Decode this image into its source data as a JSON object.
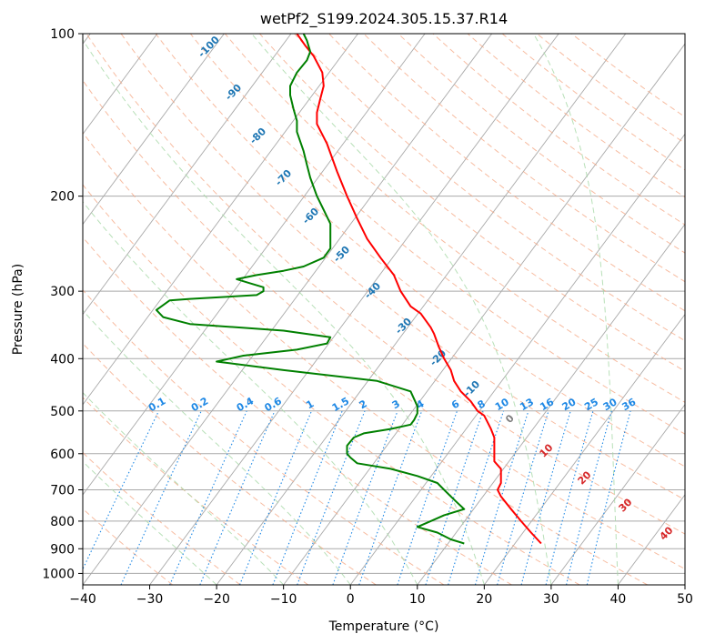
{
  "chart_data": {
    "type": "line",
    "title": "wetPf2_S199.2024.305.15.37.R14",
    "xlabel": "Temperature (°C)",
    "ylabel": "Pressure (hPa)",
    "xlim": [
      -40,
      50
    ],
    "ylim": [
      1050,
      100
    ],
    "y_scale": "log",
    "x_ticks": [
      -40,
      -30,
      -20,
      -10,
      0,
      10,
      20,
      30,
      40,
      50
    ],
    "y_ticks": [
      100,
      200,
      300,
      400,
      500,
      600,
      700,
      800,
      900,
      1000
    ],
    "grid": true,
    "colors": {
      "temperature": "#ff0000",
      "dewpoint": "#008000",
      "skew_isotherms": "#a9a9a9",
      "isobars": "#a9a9a9",
      "dry_adiabats": "#f4a582",
      "moist_adiabats": "#a6d8a6",
      "mixing_ratio": "#1e88e5",
      "isotherm_labels": "#1f77b4",
      "dry_adiabat_labels": "#d62728",
      "zero_label": "#808080"
    },
    "isotherm_labels": [
      "-100",
      "-90",
      "-80",
      "-70",
      "-60",
      "-50",
      "-40",
      "-30",
      "-20",
      "-10"
    ],
    "mixing_ratio_labels": [
      "0.1",
      "0.2",
      "0.4",
      "0.6",
      "1",
      "1.5",
      "2",
      "3",
      "4",
      "6",
      "8",
      "10",
      "13",
      "16",
      "20",
      "25",
      "30",
      "36"
    ],
    "dry_adiabat_labels": [
      "0",
      "10",
      "20",
      "30",
      "40"
    ],
    "series": [
      {
        "name": "Temperature",
        "points": [
          [
            28.5,
            880
          ],
          [
            27,
            840
          ],
          [
            25.5,
            800
          ],
          [
            24,
            760
          ],
          [
            22.5,
            720
          ],
          [
            22,
            700
          ],
          [
            22.5,
            680
          ],
          [
            22.5,
            660
          ],
          [
            22.5,
            640
          ],
          [
            22,
            630
          ],
          [
            21.5,
            620
          ],
          [
            21.5,
            600
          ],
          [
            21.5,
            580
          ],
          [
            21.5,
            560
          ],
          [
            21,
            540
          ],
          [
            20,
            510
          ],
          [
            19,
            500
          ],
          [
            18,
            480
          ],
          [
            16.5,
            460
          ],
          [
            15.5,
            440
          ],
          [
            15,
            420
          ],
          [
            14,
            400
          ],
          [
            13.2,
            380
          ],
          [
            12.5,
            360
          ],
          [
            12,
            350
          ],
          [
            10.5,
            330
          ],
          [
            9,
            320
          ],
          [
            7.5,
            300
          ],
          [
            6.5,
            280
          ],
          [
            4.5,
            260
          ],
          [
            2.5,
            240
          ],
          [
            1,
            220
          ],
          [
            -0.5,
            200
          ],
          [
            -2,
            180
          ],
          [
            -3.5,
            160
          ],
          [
            -5,
            147
          ],
          [
            -5,
            140
          ],
          [
            -4.5,
            132
          ],
          [
            -4,
            125
          ],
          [
            -4.2,
            118
          ],
          [
            -5.5,
            110
          ],
          [
            -6.8,
            105
          ],
          [
            -8,
            100
          ]
        ]
      },
      {
        "name": "Dewpoint",
        "points": [
          [
            17,
            880
          ],
          [
            15,
            865
          ],
          [
            13,
            840
          ],
          [
            10,
            820
          ],
          [
            12,
            800
          ],
          [
            14,
            780
          ],
          [
            17,
            760
          ],
          [
            16,
            740
          ],
          [
            15,
            720
          ],
          [
            14,
            700
          ],
          [
            13,
            680
          ],
          [
            10,
            660
          ],
          [
            6,
            640
          ],
          [
            1,
            625
          ],
          [
            0,
            610
          ],
          [
            -0.5,
            600
          ],
          [
            -0.5,
            580
          ],
          [
            0.5,
            560
          ],
          [
            2,
            550
          ],
          [
            6,
            540
          ],
          [
            9,
            530
          ],
          [
            9.5,
            520
          ],
          [
            10,
            505
          ],
          [
            10,
            490
          ],
          [
            9,
            460
          ],
          [
            4,
            440
          ],
          [
            -10,
            420
          ],
          [
            -20,
            405
          ],
          [
            -16,
            395
          ],
          [
            -8,
            385
          ],
          [
            -3.5,
            375
          ],
          [
            -3,
            365
          ],
          [
            -10,
            355
          ],
          [
            -24,
            345
          ],
          [
            -28,
            335
          ],
          [
            -29,
            325
          ],
          [
            -27,
            312
          ],
          [
            -24,
            310
          ],
          [
            -14,
            305
          ],
          [
            -13,
            300
          ],
          [
            -13,
            295
          ],
          [
            -15,
            290
          ],
          [
            -17,
            285
          ],
          [
            -14,
            280
          ],
          [
            -10,
            275
          ],
          [
            -7,
            270
          ],
          [
            -4,
            260
          ],
          [
            -3,
            250
          ],
          [
            -3,
            240
          ],
          [
            -3,
            235
          ],
          [
            -3,
            225
          ],
          [
            -4,
            212
          ],
          [
            -5,
            200
          ],
          [
            -6,
            185
          ],
          [
            -6.5,
            175
          ],
          [
            -7,
            165
          ],
          [
            -8,
            152
          ],
          [
            -8,
            145
          ],
          [
            -8.5,
            138
          ],
          [
            -9,
            130
          ],
          [
            -9,
            125
          ],
          [
            -8,
            118
          ],
          [
            -6.5,
            112
          ],
          [
            -6,
            108
          ],
          [
            -6.5,
            103
          ],
          [
            -7,
            100
          ]
        ]
      }
    ]
  }
}
